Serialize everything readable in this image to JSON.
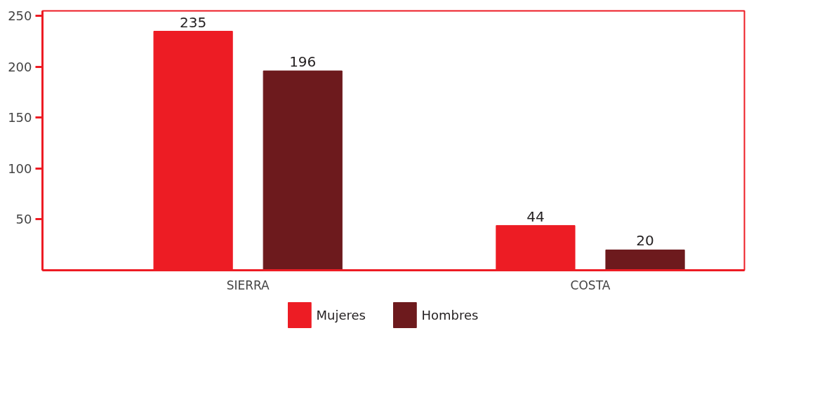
{
  "chart_data": {
    "type": "bar",
    "categories": [
      "SIERRA",
      "COSTA"
    ],
    "series": [
      {
        "name": "Mujeres",
        "color": "#ed1c24",
        "values": [
          235,
          44
        ]
      },
      {
        "name": "Hombres",
        "color": "#6d1a1d",
        "values": [
          196,
          20
        ]
      }
    ],
    "ylim": [
      0,
      255
    ],
    "yticks": [
      50,
      100,
      150,
      200,
      250
    ],
    "grid": false,
    "legend": "bottom",
    "data_labels": true
  }
}
